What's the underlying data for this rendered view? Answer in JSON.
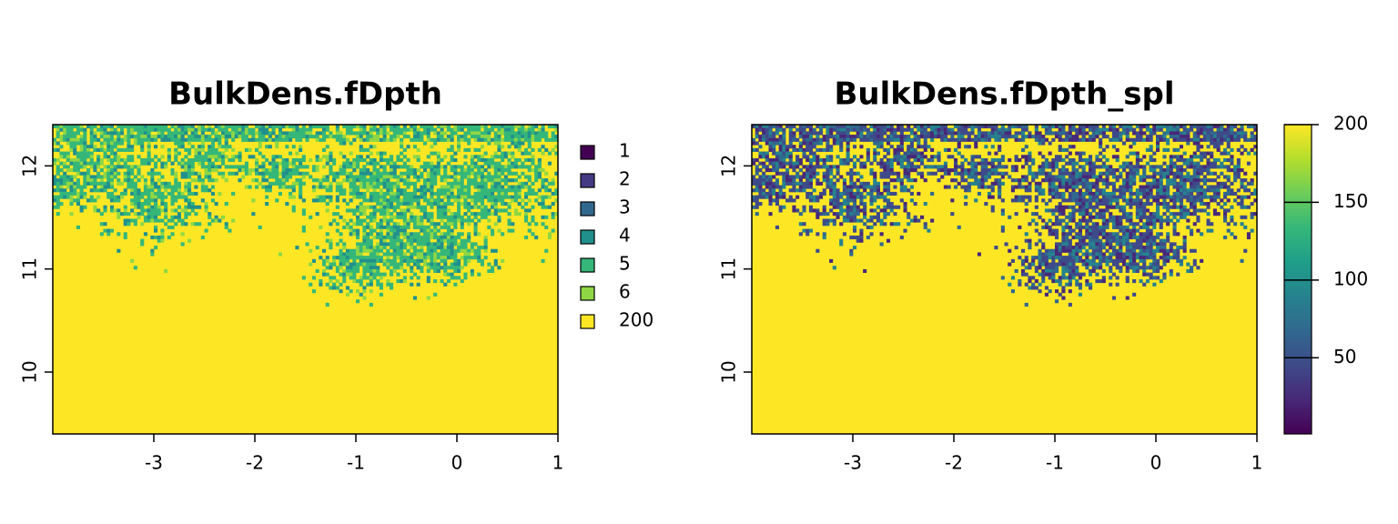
{
  "chart_data": [
    {
      "type": "raster",
      "title": "BulkDens.fDpth",
      "xlim": [
        -4.0,
        1
      ],
      "ylim": [
        9.4,
        12.4
      ],
      "xticks": [
        -3,
        -2,
        -1,
        0,
        1
      ],
      "yticks": [
        10,
        11,
        12
      ],
      "background_color": "#FDE725",
      "legend": {
        "labels": [
          1,
          2,
          3,
          4,
          5,
          6,
          200
        ],
        "colors": [
          "#440154",
          "#443A83",
          "#31688E",
          "#21908C",
          "#35B779",
          "#8FD744",
          "#FDE725"
        ]
      }
    },
    {
      "type": "raster",
      "title": "BulkDens.fDpth_spl",
      "xlim": [
        -4.0,
        1
      ],
      "ylim": [
        9.4,
        12.4
      ],
      "xticks": [
        -3,
        -2,
        -1,
        0,
        1
      ],
      "yticks": [
        10,
        11,
        12
      ],
      "background_color": "#FDE725",
      "colorbar": {
        "lim": [
          1,
          200
        ],
        "ticks": [
          50,
          100,
          150,
          200
        ],
        "colors": [
          "#440154",
          "#482878",
          "#3E4A89",
          "#31688E",
          "#26828E",
          "#1F9E89",
          "#35B779",
          "#6DCD59",
          "#B4DE2C",
          "#FDE725"
        ]
      }
    }
  ]
}
